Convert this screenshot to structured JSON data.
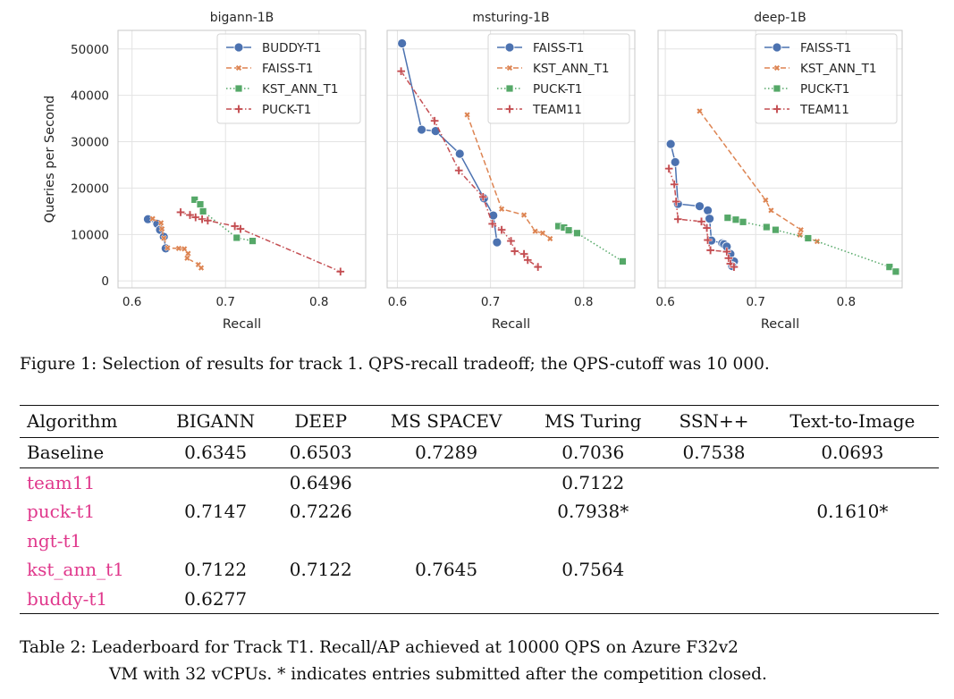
{
  "figure": {
    "caption": "Figure 1: Selection of results for track 1. QPS-recall tradeoff; the QPS-cutoff was 10 000."
  },
  "chart_data": [
    {
      "type": "line",
      "title": "bigann-1B",
      "xlabel": "Recall",
      "ylabel": "Queries per Second",
      "xlim": [
        0.585,
        0.85
      ],
      "ylim": [
        -1500,
        54000
      ],
      "xticks": [
        "0.6",
        "0.7",
        "0.8"
      ],
      "yticks": [
        "0",
        "10000",
        "20000",
        "30000",
        "40000",
        "50000"
      ],
      "grid": true,
      "legend_position": "top-right",
      "series": [
        {
          "name": "BUDDY-T1",
          "color": "#4c72b0",
          "marker": "circle",
          "dash": "solid",
          "points": [
            [
              0.617,
              13300
            ],
            [
              0.627,
              12300
            ],
            [
              0.63,
              11000
            ],
            [
              0.634,
              9500
            ],
            [
              0.636,
              7000
            ]
          ]
        },
        {
          "name": "FAISS-T1",
          "color": "#dd8452",
          "marker": "x",
          "dash": "dashed",
          "points": [
            [
              0.622,
              13400
            ],
            [
              0.631,
              12500
            ],
            [
              0.632,
              11200
            ],
            [
              0.634,
              9200
            ],
            [
              0.638,
              7100
            ],
            [
              0.65,
              7000
            ],
            [
              0.656,
              6900
            ],
            [
              0.66,
              5900
            ],
            [
              0.659,
              4900
            ],
            [
              0.671,
              3500
            ],
            [
              0.674,
              2800
            ]
          ]
        },
        {
          "name": "KST_ANN_T1",
          "color": "#55a868",
          "marker": "square",
          "dash": "dotted",
          "points": [
            [
              0.667,
              17500
            ],
            [
              0.673,
              16500
            ],
            [
              0.676,
              15000
            ],
            [
              0.712,
              9300
            ],
            [
              0.729,
              8600
            ]
          ]
        },
        {
          "name": "PUCK-T1",
          "color": "#c44e52",
          "marker": "plus",
          "dash": "dashdot",
          "points": [
            [
              0.652,
              14800
            ],
            [
              0.662,
              14200
            ],
            [
              0.668,
              13700
            ],
            [
              0.675,
              13300
            ],
            [
              0.681,
              13000
            ],
            [
              0.71,
              11800
            ],
            [
              0.716,
              11200
            ],
            [
              0.823,
              2000
            ]
          ]
        }
      ]
    },
    {
      "type": "line",
      "title": "msturing-1B",
      "xlabel": "Recall",
      "ylabel": "",
      "xlim": [
        0.589,
        0.855
      ],
      "ylim": [
        -1500,
        54000
      ],
      "xticks": [
        "0.6",
        "0.7",
        "0.8"
      ],
      "yticks": [],
      "grid": true,
      "legend_position": "top-right",
      "series": [
        {
          "name": "FAISS-T1",
          "color": "#4c72b0",
          "marker": "circle",
          "dash": "solid",
          "points": [
            [
              0.605,
              51200
            ],
            [
              0.626,
              32600
            ],
            [
              0.641,
              32300
            ],
            [
              0.667,
              27400
            ],
            [
              0.693,
              17800
            ],
            [
              0.703,
              14100
            ],
            [
              0.707,
              8300
            ]
          ]
        },
        {
          "name": "KST_ANN_T1",
          "color": "#dd8452",
          "marker": "x",
          "dash": "dashed",
          "points": [
            [
              0.675,
              35800
            ],
            [
              0.712,
              15500
            ],
            [
              0.736,
              14200
            ],
            [
              0.748,
              10700
            ],
            [
              0.756,
              10300
            ],
            [
              0.764,
              9100
            ]
          ]
        },
        {
          "name": "PUCK-T1",
          "color": "#55a868",
          "marker": "square",
          "dash": "dotted",
          "points": [
            [
              0.773,
              11800
            ],
            [
              0.779,
              11500
            ],
            [
              0.784,
              10900
            ],
            [
              0.793,
              10300
            ],
            [
              0.842,
              4200
            ]
          ]
        },
        {
          "name": "TEAM11",
          "color": "#c44e52",
          "marker": "plus",
          "dash": "dashdot",
          "points": [
            [
              0.604,
              45200
            ],
            [
              0.64,
              34500
            ],
            [
              0.666,
              23800
            ],
            [
              0.692,
              18100
            ],
            [
              0.702,
              12300
            ],
            [
              0.712,
              11000
            ],
            [
              0.722,
              8600
            ],
            [
              0.726,
              6400
            ],
            [
              0.736,
              5800
            ],
            [
              0.74,
              4500
            ],
            [
              0.751,
              3000
            ]
          ]
        }
      ]
    },
    {
      "type": "line",
      "title": "deep-1B",
      "xlabel": "Recall",
      "ylabel": "",
      "xlim": [
        0.592,
        0.862
      ],
      "ylim": [
        -1500,
        54000
      ],
      "xticks": [
        "0.6",
        "0.7",
        "0.8"
      ],
      "yticks": [],
      "grid": true,
      "legend_position": "top-right",
      "series": [
        {
          "name": "FAISS-T1",
          "color": "#4c72b0",
          "marker": "circle",
          "dash": "solid",
          "points": [
            [
              0.606,
              29500
            ],
            [
              0.611,
              25600
            ],
            [
              0.614,
              16600
            ],
            [
              0.638,
              16100
            ],
            [
              0.647,
              15200
            ],
            [
              0.649,
              13400
            ],
            [
              0.651,
              8700
            ],
            [
              0.663,
              8100
            ],
            [
              0.665,
              7900
            ],
            [
              0.668,
              7400
            ],
            [
              0.672,
              5800
            ],
            [
              0.676,
              4200
            ],
            [
              0.674,
              3200
            ]
          ]
        },
        {
          "name": "KST_ANN_T1",
          "color": "#dd8452",
          "marker": "x",
          "dash": "dashed",
          "points": [
            [
              0.638,
              36600
            ],
            [
              0.711,
              17400
            ],
            [
              0.717,
              15200
            ],
            [
              0.75,
              11000
            ],
            [
              0.749,
              9900
            ],
            [
              0.768,
              8500
            ]
          ]
        },
        {
          "name": "PUCK-T1",
          "color": "#55a868",
          "marker": "square",
          "dash": "dotted",
          "points": [
            [
              0.669,
              13600
            ],
            [
              0.678,
              13200
            ],
            [
              0.686,
              12700
            ],
            [
              0.712,
              11600
            ],
            [
              0.722,
              11000
            ],
            [
              0.758,
              9200
            ],
            [
              0.848,
              3000
            ],
            [
              0.855,
              2000
            ]
          ]
        },
        {
          "name": "TEAM11",
          "color": "#c44e52",
          "marker": "plus",
          "dash": "dashdot",
          "points": [
            [
              0.604,
              24200
            ],
            [
              0.61,
              20800
            ],
            [
              0.612,
              17100
            ],
            [
              0.614,
              13300
            ],
            [
              0.64,
              12800
            ],
            [
              0.646,
              11400
            ],
            [
              0.647,
              8800
            ],
            [
              0.65,
              6600
            ],
            [
              0.668,
              6300
            ],
            [
              0.67,
              4900
            ],
            [
              0.672,
              3700
            ],
            [
              0.676,
              3000
            ]
          ]
        }
      ]
    }
  ],
  "table": {
    "headers": [
      "Algorithm",
      "BIGANN",
      "DEEP",
      "MS SPACEV",
      "MS Turing",
      "SSN++",
      "Text-to-Image"
    ],
    "baseline": {
      "algorithm": "Baseline",
      "bigann": "0.6345",
      "deep": "0.6503",
      "ms_spacev": "0.7289",
      "ms_turing": "0.7036",
      "ssn": "0.7538",
      "text_to_image": "0.0693"
    },
    "rows": [
      {
        "algorithm": "team11",
        "bigann": "",
        "deep": "0.6496",
        "ms_spacev": "",
        "ms_turing": "0.7122",
        "ssn": "",
        "text_to_image": ""
      },
      {
        "algorithm": "puck-t1",
        "bigann": "0.7147",
        "deep": "0.7226",
        "ms_spacev": "",
        "ms_turing": "0.7938*",
        "ssn": "",
        "text_to_image": "0.1610*"
      },
      {
        "algorithm": "ngt-t1",
        "bigann": "",
        "deep": "",
        "ms_spacev": "",
        "ms_turing": "",
        "ssn": "",
        "text_to_image": ""
      },
      {
        "algorithm": "kst_ann_t1",
        "bigann": "0.7122",
        "deep": "0.7122",
        "ms_spacev": "0.7645",
        "ms_turing": "0.7564",
        "ssn": "",
        "text_to_image": ""
      },
      {
        "algorithm": "buddy-t1",
        "bigann": "0.6277",
        "deep": "",
        "ms_spacev": "",
        "ms_turing": "",
        "ssn": "",
        "text_to_image": ""
      }
    ],
    "caption_line1": "Table 2: Leaderboard for Track T1. Recall/AP achieved at 10000 QPS on Azure F32v2",
    "caption_line2": "VM with 32 vCPUs. * indicates entries submitted after the competition closed."
  }
}
